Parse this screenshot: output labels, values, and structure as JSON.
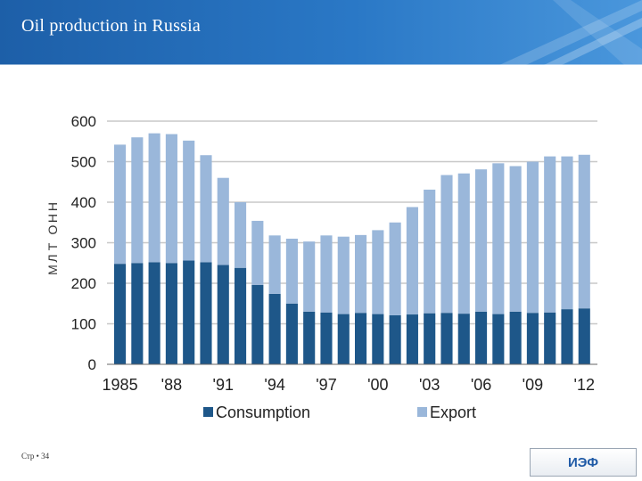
{
  "header": {
    "title": "Oil production in Russia"
  },
  "footer": {
    "page_label": "Стр • 34",
    "logo_text": "ИЭФ"
  },
  "chart_data": {
    "type": "bar",
    "stacked": true,
    "title": "",
    "xlabel": "",
    "ylabel": "ННО ТЛМ",
    "ylim": [
      0,
      600
    ],
    "yticks": [
      0,
      100,
      200,
      300,
      400,
      500,
      600
    ],
    "grid": true,
    "legend_position": "bottom",
    "categories": [
      "1985",
      "1986",
      "1987",
      "1988",
      "1989",
      "1990",
      "1991",
      "1992",
      "1993",
      "1994",
      "1995",
      "1996",
      "1997",
      "1998",
      "1999",
      "2000",
      "2001",
      "2002",
      "2003",
      "2004",
      "2005",
      "2006",
      "2007",
      "2008",
      "2009",
      "2010",
      "2011",
      "2012"
    ],
    "xtick_labels": [
      "1985",
      "'88",
      "'91",
      "'94",
      "'97",
      "'00",
      "'03",
      "'06",
      "'09",
      "'12"
    ],
    "xtick_categories": [
      "1985",
      "1988",
      "1991",
      "1994",
      "1997",
      "2000",
      "2003",
      "2006",
      "2009",
      "2012"
    ],
    "series": [
      {
        "name": "Consumption",
        "color": "#1e5789",
        "values": [
          248,
          250,
          252,
          250,
          256,
          252,
          245,
          238,
          196,
          174,
          150,
          130,
          128,
          124,
          127,
          124,
          121,
          123,
          126,
          127,
          125,
          130,
          124,
          130,
          127,
          128,
          136,
          138
        ]
      },
      {
        "name": "Export",
        "color": "#9ab7da",
        "values": [
          294,
          310,
          318,
          318,
          296,
          264,
          215,
          162,
          158,
          144,
          160,
          173,
          190,
          191,
          192,
          207,
          229,
          265,
          305,
          340,
          346,
          351,
          372,
          359,
          373,
          385,
          377,
          379
        ]
      }
    ]
  }
}
